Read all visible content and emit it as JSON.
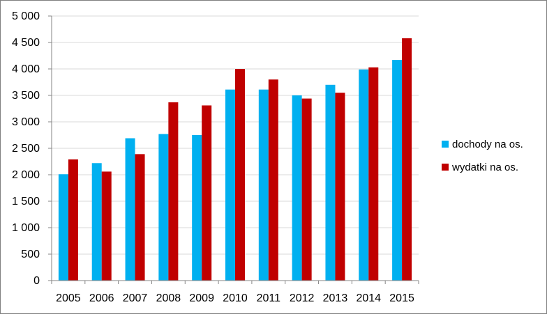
{
  "chart_data": {
    "type": "bar",
    "title": "",
    "xlabel": "",
    "ylabel": "",
    "categories": [
      "2005",
      "2006",
      "2007",
      "2008",
      "2009",
      "2010",
      "2011",
      "2012",
      "2013",
      "2014",
      "2015"
    ],
    "series": [
      {
        "name": "dochody na os.",
        "color": "#00b0f0",
        "values": [
          2010,
          2220,
          2690,
          2770,
          2750,
          3610,
          3610,
          3500,
          3700,
          3990,
          4170
        ]
      },
      {
        "name": "wydatki na os.",
        "color": "#c00000",
        "values": [
          2290,
          2060,
          2390,
          3370,
          3310,
          4000,
          3800,
          3440,
          3550,
          4030,
          4580
        ]
      }
    ],
    "ylim": [
      0,
      5000
    ],
    "y_ticks": [
      "0",
      "500",
      "1 000",
      "1 500",
      "2 000",
      "2 500",
      "3 000",
      "3 500",
      "4 000",
      "4 500",
      "5 000"
    ],
    "y_tick_values": [
      0,
      500,
      1000,
      1500,
      2000,
      2500,
      3000,
      3500,
      4000,
      4500,
      5000
    ],
    "grid": true,
    "legend_position": "right"
  }
}
